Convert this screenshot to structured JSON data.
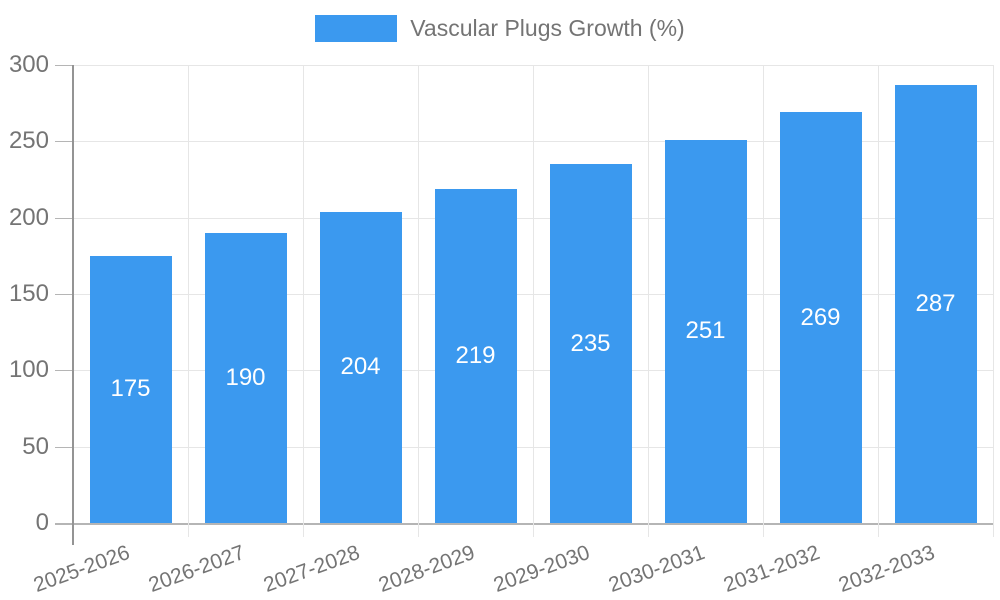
{
  "chart_data": {
    "type": "bar",
    "legend_label": "Vascular Plugs Growth (%)",
    "categories": [
      "2025-2026",
      "2026-2027",
      "2027-2028",
      "2028-2029",
      "2029-2030",
      "2030-2031",
      "2031-2032",
      "2032-2033"
    ],
    "values": [
      175,
      190,
      204,
      219,
      235,
      251,
      269,
      287
    ],
    "ylim": [
      0,
      300
    ],
    "yticks": [
      0,
      50,
      100,
      150,
      200,
      250,
      300
    ],
    "grid": true,
    "legend_position": "top",
    "colors": {
      "bar": "#3b99ef",
      "grid": "#e6e6e6",
      "y_axis": "#949494",
      "x_axis": "#b5b5b5",
      "tick": "#b5b5b5",
      "tick_text": "#747474",
      "bar_label_text": "#ffffff",
      "background": "#ffffff"
    }
  }
}
